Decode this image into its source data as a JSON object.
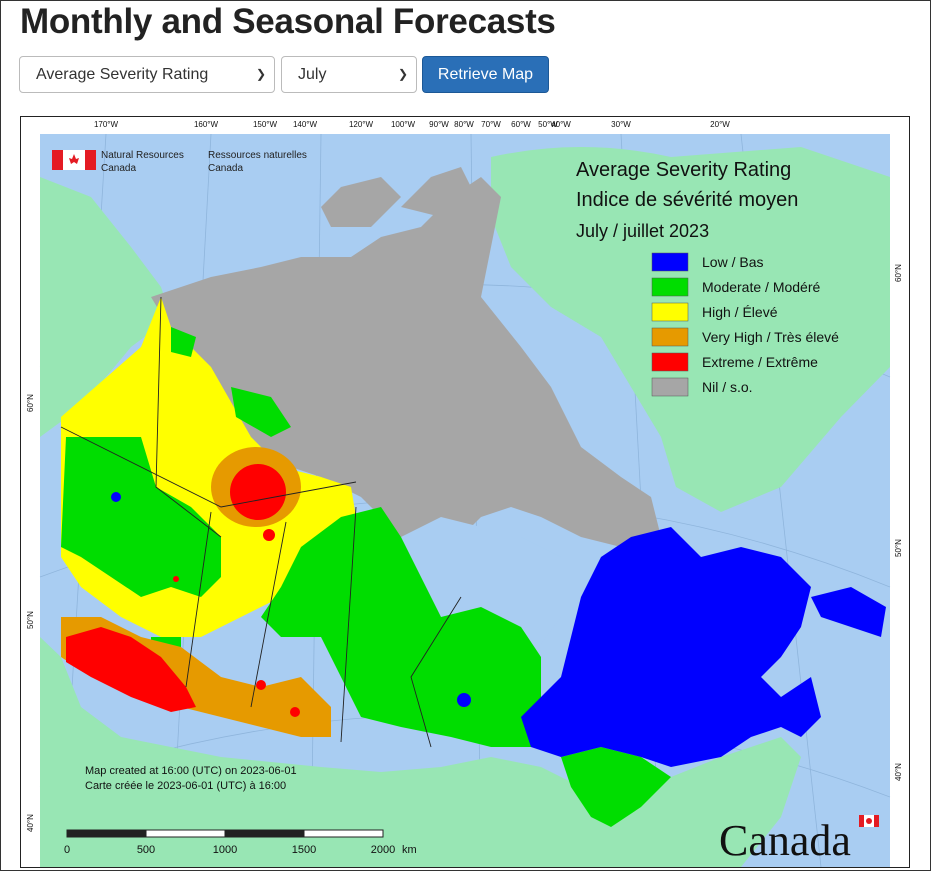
{
  "page": {
    "title": "Monthly and Seasonal Forecasts"
  },
  "controls": {
    "product_select": {
      "value": "Average Severity Rating"
    },
    "month_select": {
      "value": "July"
    },
    "retrieve_label": "Retrieve Map"
  },
  "map": {
    "title_en": "Average Severity Rating",
    "title_fr": "Indice de sévérité moyen",
    "period": "July / juillet 2023",
    "agency_en": "Natural Resources",
    "agency_en2": "Canada",
    "agency_fr": "Ressources naturelles",
    "agency_fr2": "Canada",
    "wordmark": "Canada",
    "legend": [
      {
        "label": "Low / Bas",
        "color": "#0000ff"
      },
      {
        "label": "Moderate / Modéré",
        "color": "#00dd00"
      },
      {
        "label": "High / Élevé",
        "color": "#ffff00"
      },
      {
        "label": "Very High / Très élevé",
        "color": "#e69a00"
      },
      {
        "label": "Extreme / Extrême",
        "color": "#ff0000"
      },
      {
        "label": "Nil / s.o.",
        "color": "#a6a6a6"
      }
    ],
    "created_en": "Map created at 16:00 (UTC) on 2023-06-01",
    "created_fr": "Carte créée le 2023-06-01 (UTC) à 16:00",
    "scale_labels": [
      "0",
      "500",
      "1000",
      "1500",
      "2000"
    ],
    "scale_unit": "km",
    "lon_labels": [
      "170°W",
      "160°W",
      "150°W",
      "140°W",
      "120°W",
      "100°W",
      "90°W",
      "80°W",
      "70°W",
      "60°W",
      "50°W",
      "40°W",
      "30°W",
      "20°W"
    ],
    "lat_labels_left": [
      "60°N",
      "50°N",
      "40°N"
    ],
    "lat_labels_right": [
      "60°N",
      "50°N",
      "40°N"
    ],
    "colors": {
      "water": "#a9cdf2",
      "land_foreign": "#98e6b4",
      "nil": "#a6a6a6",
      "frame": "#222222"
    }
  }
}
